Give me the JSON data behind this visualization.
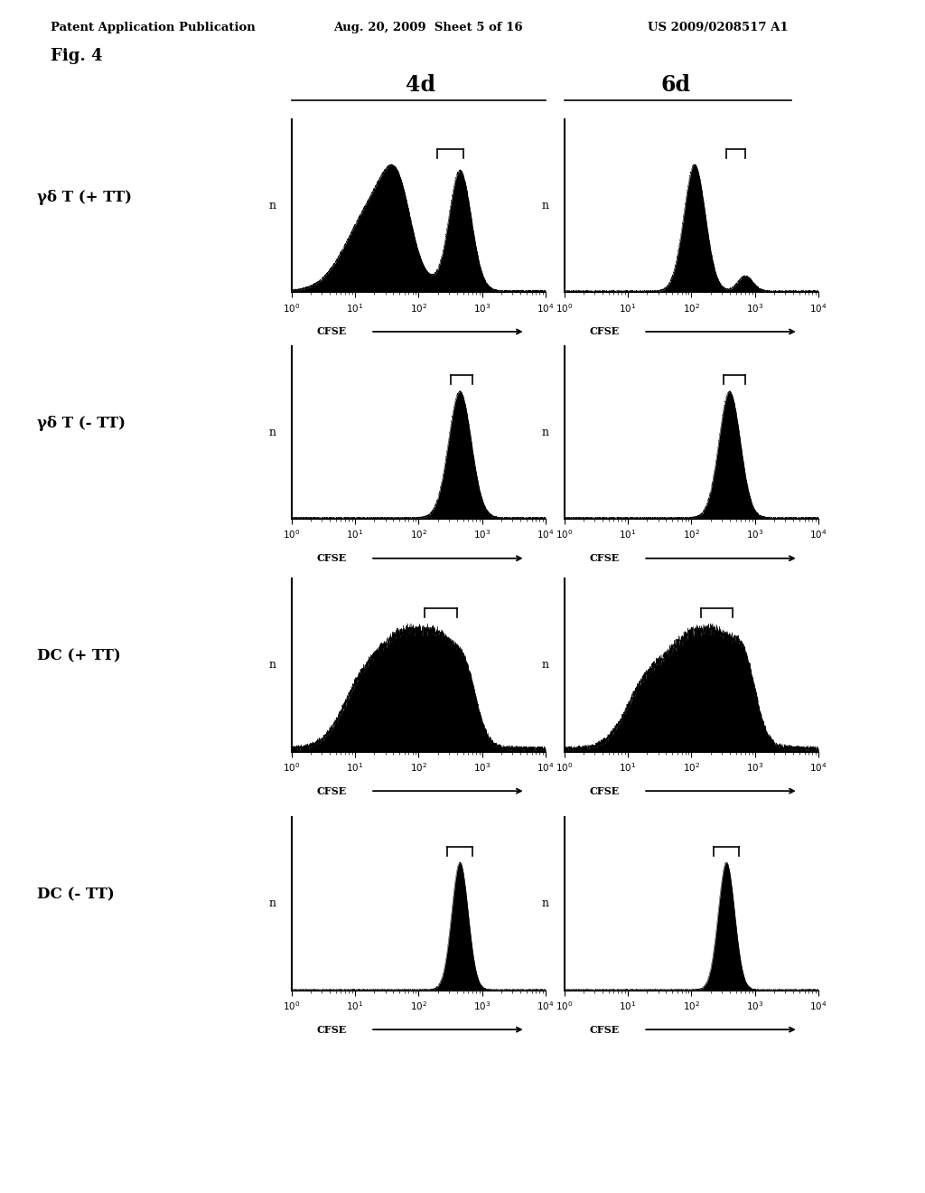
{
  "title_line1": "Patent Application Publication",
  "title_line2": "Aug. 20, 2009  Sheet 5 of 16",
  "title_line3": "US 2009/0208517 A1",
  "fig_label": "Fig. 4",
  "col_headers": [
    "4d",
    "6d"
  ],
  "row_labels": [
    "γδ T (+ TT)",
    "γδ T (- TT)",
    "DC (+ TT)",
    "DC (- TT)"
  ],
  "background_color": "#ffffff",
  "hist_color": "#000000",
  "profiles": [
    [
      "gd_TT_plus_4d",
      "gd_TT_plus_6d"
    ],
    [
      "gd_TT_minus_4d",
      "gd_TT_minus_6d"
    ],
    [
      "dc_TT_plus_4d",
      "dc_TT_plus_6d"
    ],
    [
      "dc_TT_minus_4d",
      "dc_TT_minus_6d"
    ]
  ],
  "bracket_x": [
    [
      [
        2.3,
        2.7
      ],
      [
        2.55,
        2.85
      ]
    ],
    [
      [
        2.5,
        2.85
      ],
      [
        2.5,
        2.85
      ]
    ],
    [
      [
        2.1,
        2.6
      ],
      [
        2.15,
        2.65
      ]
    ],
    [
      [
        2.45,
        2.85
      ],
      [
        2.35,
        2.75
      ]
    ]
  ]
}
